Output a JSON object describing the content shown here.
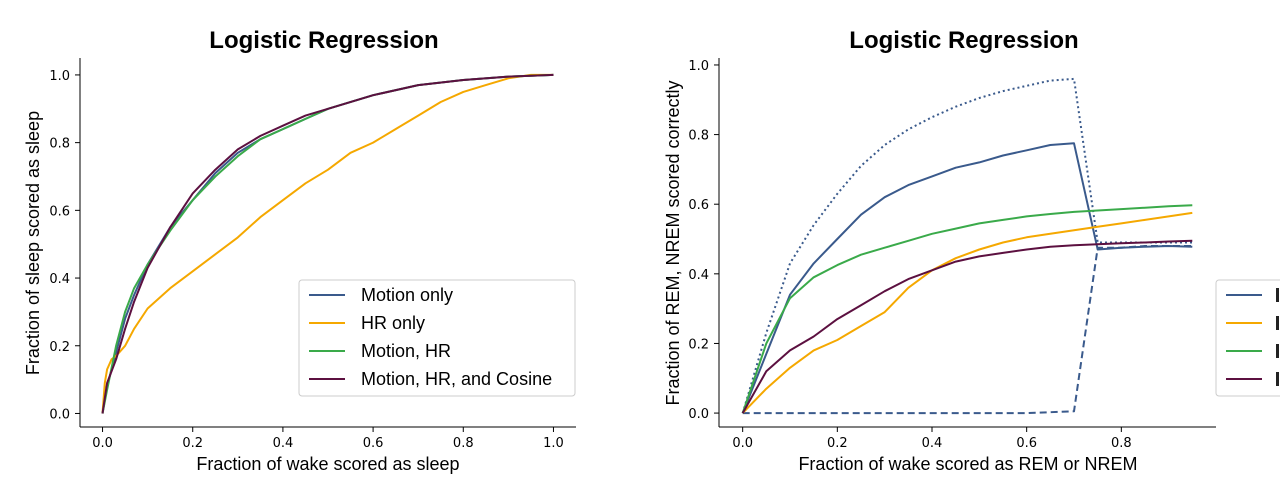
{
  "chart_data": [
    {
      "type": "line",
      "title": "Logistic Regression",
      "xlabel": "Fraction of wake scored as sleep",
      "ylabel": "Fraction of sleep scored as sleep",
      "xlim": [
        -0.05,
        1.05
      ],
      "ylim": [
        -0.04,
        1.05
      ],
      "xticks": [
        "0.0",
        "0.2",
        "0.4",
        "0.6",
        "0.8",
        "1.0"
      ],
      "yticks": [
        "0.0",
        "0.2",
        "0.4",
        "0.6",
        "0.8",
        "1.0"
      ],
      "legend_position": "lower-right",
      "series": [
        {
          "name": "Motion only",
          "color": "#3a5a8c",
          "style": "solid",
          "x": [
            0,
            0.01,
            0.03,
            0.05,
            0.07,
            0.1,
            0.15,
            0.2,
            0.25,
            0.3,
            0.35,
            0.4,
            0.45,
            0.5,
            0.6,
            0.7,
            0.8,
            0.9,
            1.0
          ],
          "y": [
            0,
            0.08,
            0.18,
            0.28,
            0.35,
            0.44,
            0.55,
            0.63,
            0.71,
            0.77,
            0.81,
            0.84,
            0.87,
            0.9,
            0.94,
            0.97,
            0.985,
            0.995,
            1.0
          ]
        },
        {
          "name": "HR only",
          "color": "#f5a800",
          "style": "solid",
          "x": [
            0,
            0.005,
            0.01,
            0.02,
            0.03,
            0.05,
            0.07,
            0.1,
            0.15,
            0.2,
            0.25,
            0.3,
            0.35,
            0.4,
            0.45,
            0.5,
            0.55,
            0.6,
            0.65,
            0.7,
            0.75,
            0.8,
            0.85,
            0.9,
            0.95,
            1.0
          ],
          "y": [
            0,
            0.09,
            0.13,
            0.16,
            0.17,
            0.2,
            0.25,
            0.31,
            0.37,
            0.42,
            0.47,
            0.52,
            0.58,
            0.63,
            0.68,
            0.72,
            0.77,
            0.8,
            0.84,
            0.88,
            0.92,
            0.95,
            0.97,
            0.99,
            1.0,
            1.0
          ]
        },
        {
          "name": "Motion, HR",
          "color": "#3aaa4a",
          "style": "solid",
          "x": [
            0,
            0.01,
            0.03,
            0.05,
            0.07,
            0.1,
            0.15,
            0.2,
            0.25,
            0.3,
            0.35,
            0.4,
            0.45,
            0.5,
            0.6,
            0.7,
            0.8,
            0.9,
            1.0
          ],
          "y": [
            0,
            0.07,
            0.2,
            0.3,
            0.37,
            0.44,
            0.54,
            0.63,
            0.7,
            0.76,
            0.81,
            0.84,
            0.87,
            0.9,
            0.94,
            0.97,
            0.985,
            0.995,
            1.0
          ]
        },
        {
          "name": "Motion, HR, and Cosine",
          "color": "#5c1040",
          "style": "solid",
          "x": [
            0,
            0.01,
            0.03,
            0.05,
            0.07,
            0.1,
            0.15,
            0.2,
            0.25,
            0.3,
            0.35,
            0.4,
            0.45,
            0.5,
            0.6,
            0.7,
            0.8,
            0.9,
            1.0
          ],
          "y": [
            0,
            0.09,
            0.16,
            0.25,
            0.33,
            0.43,
            0.55,
            0.65,
            0.72,
            0.78,
            0.82,
            0.85,
            0.88,
            0.9,
            0.94,
            0.97,
            0.985,
            0.995,
            1.0
          ]
        }
      ]
    },
    {
      "type": "line",
      "title": "Logistic Regression",
      "xlabel": "Fraction of wake scored as REM or NREM",
      "ylabel": "Fraction of REM, NREM scored correctly",
      "xlim": [
        -0.05,
        1.0
      ],
      "ylim": [
        -0.04,
        1.02
      ],
      "xticks": [
        "0.0",
        "0.2",
        "0.4",
        "0.6",
        "0.8"
      ],
      "yticks": [
        "0.0",
        "0.2",
        "0.4",
        "0.6",
        "0.8",
        "1.0"
      ],
      "legend_position": "right (clipped)",
      "series": [
        {
          "name": "",
          "color": "#3a5a8c",
          "style": "solid",
          "x": [
            0,
            0.05,
            0.1,
            0.15,
            0.2,
            0.25,
            0.3,
            0.35,
            0.4,
            0.45,
            0.5,
            0.55,
            0.6,
            0.65,
            0.7,
            0.75,
            0.8,
            0.85,
            0.9,
            0.95
          ],
          "y": [
            0,
            0.17,
            0.34,
            0.43,
            0.5,
            0.57,
            0.62,
            0.655,
            0.68,
            0.705,
            0.72,
            0.74,
            0.755,
            0.77,
            0.775,
            0.47,
            0.475,
            0.478,
            0.48,
            0.478
          ]
        },
        {
          "name": "",
          "color": "#3a5a8c",
          "style": "dotted",
          "x": [
            0,
            0.05,
            0.1,
            0.15,
            0.2,
            0.25,
            0.3,
            0.35,
            0.4,
            0.45,
            0.5,
            0.55,
            0.6,
            0.65,
            0.7,
            0.75,
            0.8,
            0.85,
            0.9,
            0.95
          ],
          "y": [
            0,
            0.23,
            0.43,
            0.54,
            0.63,
            0.71,
            0.77,
            0.815,
            0.85,
            0.88,
            0.905,
            0.925,
            0.94,
            0.955,
            0.96,
            0.49,
            0.49,
            0.49,
            0.49,
            0.49
          ]
        },
        {
          "name": "",
          "color": "#3a5a8c",
          "style": "dashed",
          "x": [
            0,
            0.1,
            0.2,
            0.3,
            0.4,
            0.5,
            0.6,
            0.7,
            0.75,
            0.8,
            0.85,
            0.9,
            0.95
          ],
          "y": [
            0,
            0,
            0,
            0,
            0,
            0,
            0,
            0.005,
            0.475,
            0.475,
            0.48,
            0.48,
            0.48
          ]
        },
        {
          "name": "",
          "color": "#f5a800",
          "style": "solid",
          "x": [
            0,
            0.05,
            0.1,
            0.15,
            0.2,
            0.25,
            0.3,
            0.35,
            0.4,
            0.45,
            0.5,
            0.55,
            0.6,
            0.65,
            0.7,
            0.75,
            0.8,
            0.85,
            0.9,
            0.95
          ],
          "y": [
            0,
            0.07,
            0.13,
            0.18,
            0.21,
            0.25,
            0.29,
            0.36,
            0.41,
            0.445,
            0.47,
            0.49,
            0.505,
            0.515,
            0.525,
            0.535,
            0.545,
            0.555,
            0.565,
            0.575
          ]
        },
        {
          "name": "",
          "color": "#3aaa4a",
          "style": "solid",
          "x": [
            0,
            0.05,
            0.1,
            0.15,
            0.2,
            0.25,
            0.3,
            0.35,
            0.4,
            0.45,
            0.5,
            0.55,
            0.6,
            0.65,
            0.7,
            0.75,
            0.8,
            0.85,
            0.9,
            0.95
          ],
          "y": [
            0,
            0.2,
            0.33,
            0.39,
            0.425,
            0.455,
            0.475,
            0.495,
            0.515,
            0.53,
            0.545,
            0.555,
            0.565,
            0.572,
            0.578,
            0.582,
            0.586,
            0.59,
            0.594,
            0.597
          ]
        },
        {
          "name": "",
          "color": "#5c1040",
          "style": "solid",
          "x": [
            0,
            0.05,
            0.1,
            0.15,
            0.2,
            0.25,
            0.3,
            0.35,
            0.4,
            0.45,
            0.5,
            0.55,
            0.6,
            0.65,
            0.7,
            0.75,
            0.8,
            0.85,
            0.9,
            0.95
          ],
          "y": [
            0,
            0.12,
            0.18,
            0.22,
            0.27,
            0.31,
            0.35,
            0.385,
            0.41,
            0.435,
            0.45,
            0.46,
            0.47,
            0.478,
            0.482,
            0.485,
            0.488,
            0.49,
            0.493,
            0.495
          ]
        }
      ]
    }
  ]
}
